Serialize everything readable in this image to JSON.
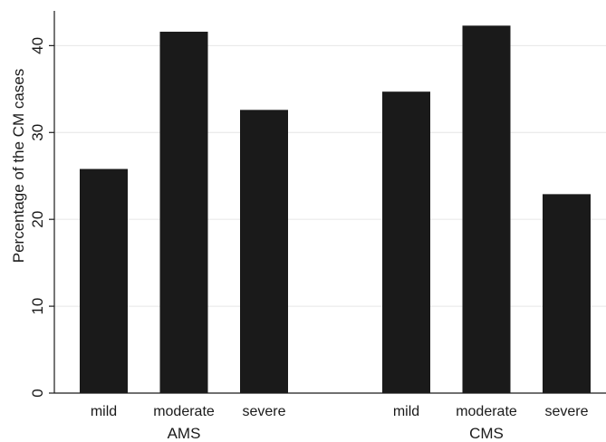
{
  "chart_data": {
    "type": "bar",
    "title": "",
    "xlabel": "",
    "ylabel": "Percentage of the CM cases",
    "ylim": [
      0,
      44
    ],
    "yticks": [
      0,
      10,
      20,
      30,
      40
    ],
    "grid": true,
    "bar_color": "#1a1a1a",
    "groups": [
      {
        "label": "AMS",
        "categories": [
          "mild",
          "moderate",
          "severe"
        ],
        "values": [
          25.8,
          41.6,
          32.6
        ]
      },
      {
        "label": "CMS",
        "categories": [
          "mild",
          "moderate",
          "severe"
        ],
        "values": [
          34.7,
          42.3,
          22.9
        ]
      }
    ]
  }
}
